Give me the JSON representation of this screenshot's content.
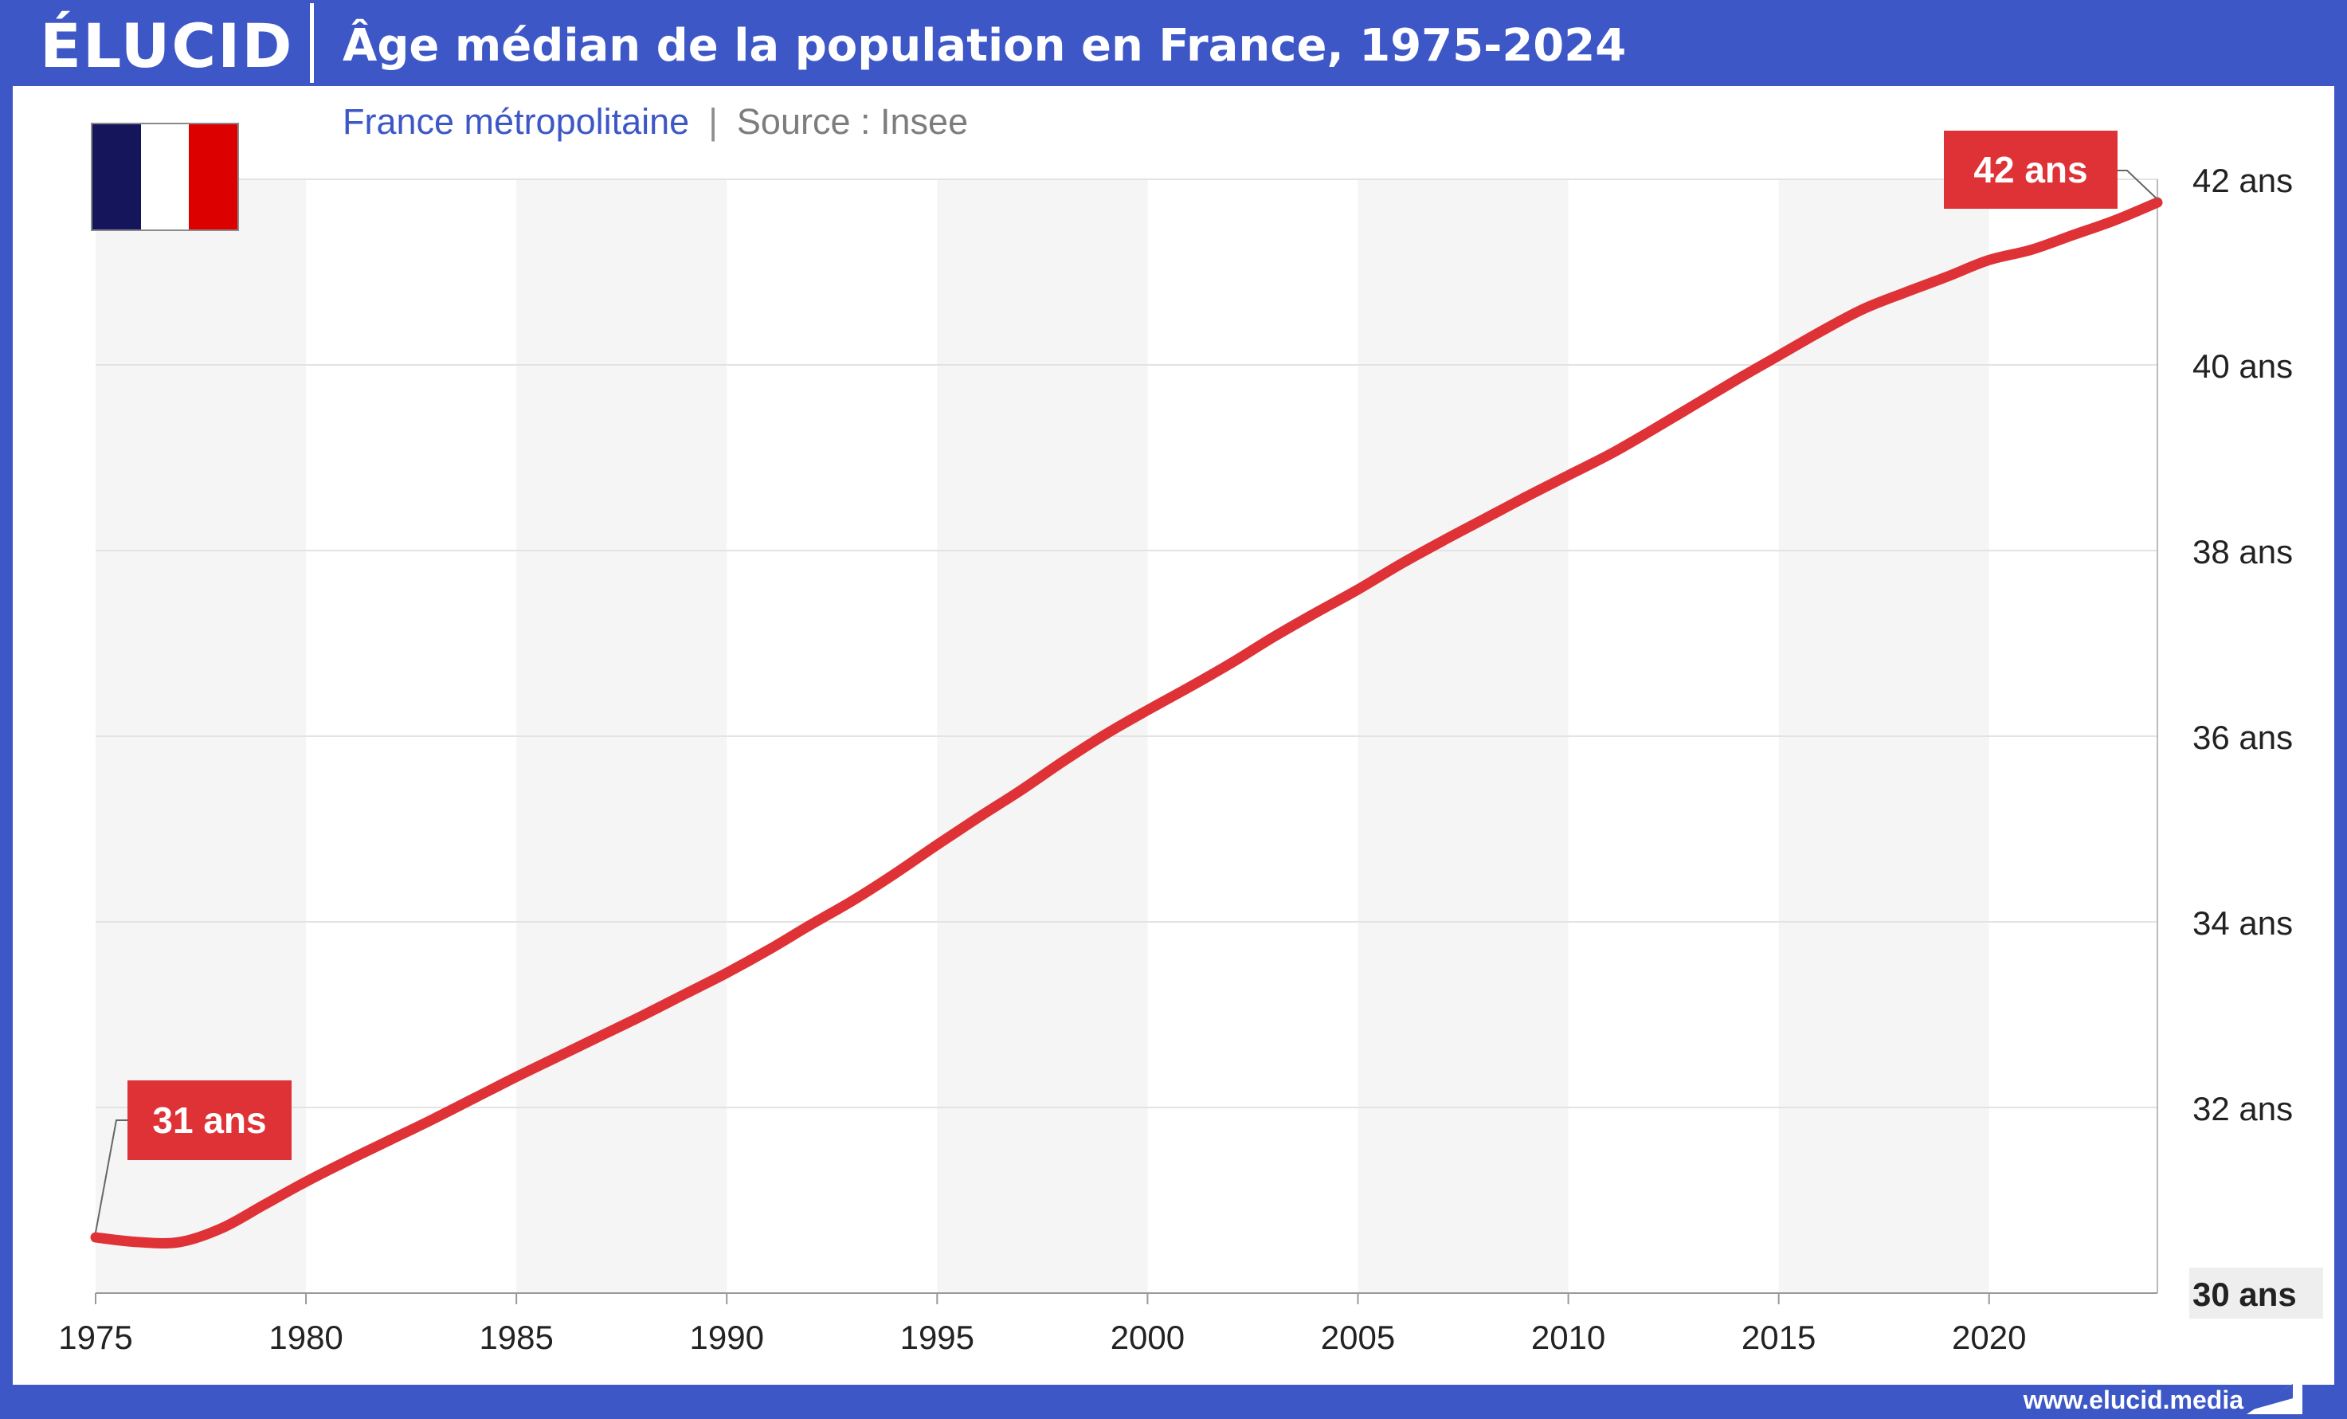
{
  "header": {
    "logo": "ÉLUCID",
    "title": "Âge médian de la population en France, 1975-2024"
  },
  "subtitle": {
    "region": "France métropolitaine",
    "separator": "|",
    "source": "Source : Insee"
  },
  "flag": {
    "colors": [
      "#14155a",
      "#ffffff",
      "#dc0000"
    ]
  },
  "footer": {
    "url": "www.elucid.media"
  },
  "colors": {
    "brand": "#3d57c7",
    "line": "#df3237",
    "label_bg": "#df3237",
    "band": "#f5f5f5",
    "grid": "#e3e3e3",
    "axis_text": "#222222"
  },
  "chart_data": {
    "type": "line",
    "title": "Âge médian de la population en France, 1975-2024",
    "xlabel": "",
    "ylabel": "",
    "xlim": [
      1975,
      2024
    ],
    "ylim": [
      30,
      42
    ],
    "x_ticks": [
      1975,
      1980,
      1985,
      1990,
      1995,
      2000,
      2005,
      2010,
      2015,
      2020
    ],
    "y_ticks": [
      {
        "value": 30,
        "label": "30 ans"
      },
      {
        "value": 32,
        "label": "32 ans"
      },
      {
        "value": 34,
        "label": "34 ans"
      },
      {
        "value": 36,
        "label": "36 ans"
      },
      {
        "value": 38,
        "label": "38 ans"
      },
      {
        "value": 40,
        "label": "40 ans"
      },
      {
        "value": 42,
        "label": "42 ans"
      }
    ],
    "y_axis_side": "right",
    "grid": "horizontal",
    "x": [
      1975,
      1976,
      1977,
      1978,
      1979,
      1980,
      1981,
      1982,
      1983,
      1984,
      1985,
      1986,
      1987,
      1988,
      1989,
      1990,
      1991,
      1992,
      1993,
      1994,
      1995,
      1996,
      1997,
      1998,
      1999,
      2000,
      2001,
      2002,
      2003,
      2004,
      2005,
      2006,
      2007,
      2008,
      2009,
      2010,
      2011,
      2012,
      2013,
      2014,
      2015,
      2016,
      2017,
      2018,
      2019,
      2020,
      2021,
      2022,
      2023,
      2024
    ],
    "series": [
      {
        "values": [
          30.6,
          30.55,
          30.55,
          30.7,
          30.95,
          31.2,
          31.43,
          31.65,
          31.87,
          32.1,
          32.33,
          32.55,
          32.77,
          32.99,
          33.22,
          33.45,
          33.7,
          33.97,
          34.23,
          34.52,
          34.83,
          35.13,
          35.42,
          35.73,
          36.02,
          36.28,
          36.53,
          36.79,
          37.07,
          37.33,
          37.58,
          37.85,
          38.1,
          38.34,
          38.58,
          38.81,
          39.04,
          39.3,
          39.57,
          39.84,
          40.1,
          40.36,
          40.6,
          40.78,
          40.95,
          41.13,
          41.24,
          41.4,
          41.56,
          41.75
        ]
      }
    ],
    "annotations": [
      {
        "x": 1975,
        "y": 30.6,
        "label": "31 ans"
      },
      {
        "x": 2024,
        "y": 41.75,
        "label": "42 ans"
      }
    ]
  }
}
